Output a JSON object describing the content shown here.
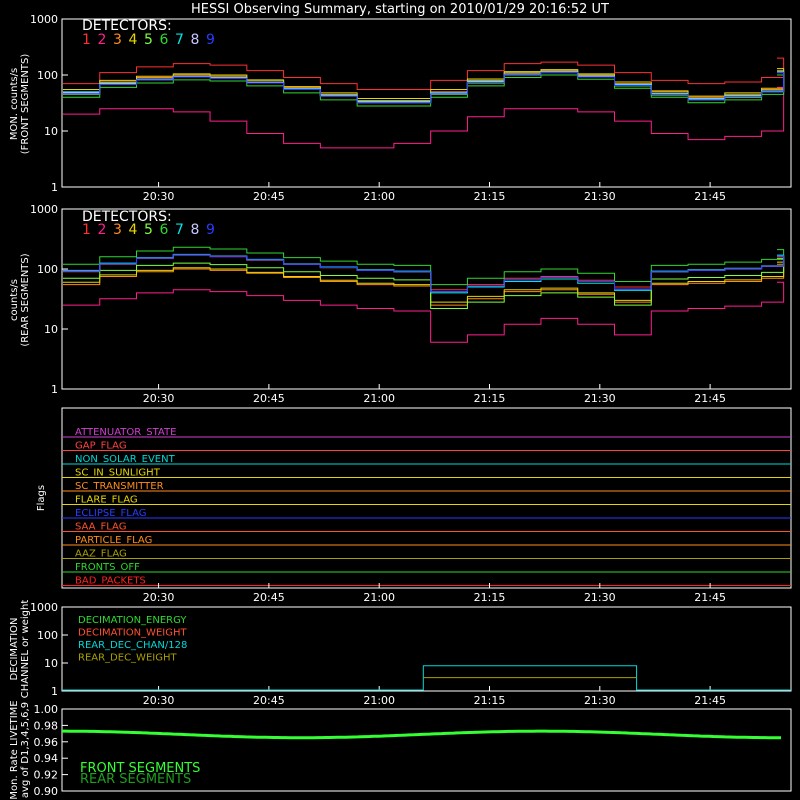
{
  "title": "HESSI Observing Summary, starting on 2010/01/29 20:16:52 UT",
  "colors": {
    "d1": "#ff3030",
    "d2": "#ff1f8f",
    "d3": "#ff8c1a",
    "d4": "#e6d600",
    "d5": "#7fff3f",
    "d6": "#2fd82f",
    "d7": "#00e6e6",
    "d8": "#c8c8ff",
    "d9": "#2a3cff",
    "axis": "#ffffff"
  },
  "x_ticks": [
    "20:30",
    "20:45",
    "21:00",
    "21:15",
    "21:30",
    "21:45"
  ],
  "chart_data": [
    {
      "type": "line",
      "ylabel": "MON. counts/s",
      "ylabel2": "(FRONT SEGMENTS)",
      "yscale": "log",
      "ylim": [
        1,
        1000
      ],
      "y_ticks": [
        "1",
        "10",
        "100",
        "1000"
      ],
      "legend_title": "DETECTORS:",
      "legend_items": [
        "1",
        "2",
        "3",
        "4",
        "5",
        "6",
        "7",
        "8",
        "9"
      ],
      "x": [
        "20:17",
        "20:22",
        "20:27",
        "20:32",
        "20:37",
        "20:42",
        "20:47",
        "20:52",
        "20:57",
        "21:02",
        "21:07",
        "21:12",
        "21:17",
        "21:22",
        "21:27",
        "21:32",
        "21:37",
        "21:42",
        "21:47",
        "21:52",
        "21:55"
      ],
      "series": [
        {
          "name": "1",
          "values": [
            70,
            110,
            140,
            160,
            150,
            120,
            90,
            70,
            55,
            55,
            80,
            120,
            160,
            170,
            150,
            110,
            80,
            70,
            75,
            90,
            200
          ]
        },
        {
          "name": "2",
          "values": [
            20,
            25,
            25,
            22,
            15,
            9,
            6,
            5,
            5,
            6,
            10,
            18,
            25,
            25,
            22,
            15,
            9,
            7,
            8,
            10,
            60
          ]
        },
        {
          "name": "3",
          "values": [
            50,
            75,
            90,
            100,
            95,
            80,
            60,
            45,
            35,
            35,
            50,
            80,
            110,
            120,
            100,
            70,
            50,
            40,
            45,
            55,
            120
          ]
        },
        {
          "name": "4",
          "values": [
            55,
            80,
            95,
            105,
            100,
            82,
            62,
            48,
            38,
            38,
            55,
            85,
            115,
            125,
            105,
            75,
            52,
            42,
            48,
            58,
            130
          ]
        },
        {
          "name": "5",
          "values": [
            45,
            68,
            82,
            92,
            88,
            72,
            55,
            42,
            32,
            32,
            45,
            72,
            100,
            110,
            92,
            64,
            44,
            36,
            40,
            50,
            110
          ]
        },
        {
          "name": "6",
          "values": [
            40,
            60,
            72,
            82,
            78,
            64,
            48,
            36,
            28,
            28,
            40,
            64,
            90,
            100,
            84,
            58,
            40,
            32,
            36,
            45,
            100
          ]
        },
        {
          "name": "7",
          "values": [
            50,
            72,
            85,
            95,
            90,
            75,
            57,
            44,
            34,
            34,
            48,
            78,
            105,
            115,
            96,
            68,
            47,
            38,
            43,
            52,
            115
          ]
        },
        {
          "name": "8",
          "values": [
            48,
            70,
            84,
            94,
            89,
            74,
            56,
            43,
            33,
            33,
            47,
            76,
            103,
            113,
            94,
            66,
            46,
            37,
            42,
            51,
            112
          ]
        },
        {
          "name": "9",
          "values": [
            46,
            68,
            82,
            92,
            87,
            72,
            55,
            42,
            32,
            32,
            46,
            74,
            101,
            111,
            92,
            65,
            45,
            36,
            41,
            50,
            110
          ]
        }
      ]
    },
    {
      "type": "line",
      "ylabel": "counts/s",
      "ylabel2": "(REAR SEGMENTS)",
      "yscale": "log",
      "ylim": [
        1,
        1000
      ],
      "y_ticks": [
        "1",
        "10",
        "100",
        "1000"
      ],
      "legend_title": "DETECTORS:",
      "legend_items": [
        "1",
        "2",
        "3",
        "4",
        "5",
        "6",
        "7",
        "8",
        "9"
      ],
      "x": [
        "20:17",
        "20:22",
        "20:27",
        "20:32",
        "20:37",
        "20:42",
        "20:47",
        "20:52",
        "20:57",
        "21:02",
        "21:07",
        "21:12",
        "21:17",
        "21:22",
        "21:27",
        "21:32",
        "21:37",
        "21:42",
        "21:47",
        "21:52",
        "21:55"
      ],
      "series": [
        {
          "name": "1",
          "values": [
            90,
            120,
            150,
            170,
            160,
            140,
            120,
            105,
            95,
            90,
            45,
            55,
            70,
            75,
            65,
            50,
            90,
            95,
            100,
            110,
            160
          ]
        },
        {
          "name": "2",
          "values": [
            25,
            32,
            40,
            45,
            42,
            36,
            30,
            25,
            22,
            20,
            6,
            8,
            12,
            15,
            12,
            8,
            20,
            22,
            24,
            28,
            60
          ]
        },
        {
          "name": "3",
          "values": [
            55,
            75,
            90,
            100,
            95,
            85,
            72,
            62,
            55,
            52,
            25,
            32,
            42,
            45,
            38,
            28,
            55,
            58,
            62,
            70,
            120
          ]
        },
        {
          "name": "4",
          "values": [
            60,
            80,
            95,
            105,
            100,
            88,
            75,
            65,
            58,
            55,
            28,
            35,
            45,
            48,
            40,
            30,
            58,
            62,
            66,
            75,
            130
          ]
        },
        {
          "name": "5",
          "values": [
            70,
            95,
            115,
            125,
            118,
            105,
            90,
            78,
            70,
            66,
            22,
            28,
            36,
            40,
            34,
            25,
            68,
            72,
            78,
            88,
            150
          ]
        },
        {
          "name": "6",
          "values": [
            120,
            160,
            200,
            230,
            215,
            185,
            155,
            135,
            120,
            115,
            55,
            70,
            90,
            100,
            85,
            62,
            115,
            120,
            130,
            145,
            210
          ]
        },
        {
          "name": "7",
          "values": [
            95,
            125,
            155,
            175,
            165,
            145,
            122,
            108,
            97,
            92,
            40,
            50,
            62,
            68,
            58,
            44,
            92,
            97,
            103,
            113,
            170
          ]
        },
        {
          "name": "8",
          "values": [
            92,
            122,
            152,
            172,
            162,
            142,
            120,
            106,
            95,
            90,
            42,
            52,
            66,
            72,
            62,
            46,
            90,
            95,
            101,
            111,
            165
          ]
        },
        {
          "name": "9",
          "values": [
            92,
            122,
            152,
            172,
            162,
            142,
            120,
            106,
            95,
            90,
            42,
            52,
            66,
            72,
            62,
            46,
            90,
            95,
            101,
            111,
            165
          ]
        }
      ]
    }
  ],
  "flags_panel": {
    "ylabel": "Flags",
    "flags": [
      {
        "label": "ATTENUATOR_STATE",
        "color": "#d040d0"
      },
      {
        "label": "GAP_FLAG",
        "color": "#ff4040"
      },
      {
        "label": "NON_SOLAR_EVENT",
        "color": "#00d8d8"
      },
      {
        "label": "SC_IN_SUNLIGHT",
        "color": "#e6d600"
      },
      {
        "label": "SC_TRANSMITTER",
        "color": "#ff8c1a"
      },
      {
        "label": "FLARE_FLAG",
        "color": "#e6d600"
      },
      {
        "label": "ECLIPSE_FLAG",
        "color": "#2a3cff"
      },
      {
        "label": "SAA_FLAG",
        "color": "#ff5030"
      },
      {
        "label": "PARTICLE_FLAG",
        "color": "#ff8c1a"
      },
      {
        "label": "AAZ_FLAG",
        "color": "#a8a000"
      },
      {
        "label": "FRONTS_OFF",
        "color": "#2fd82f"
      },
      {
        "label": "BAD_PACKETS",
        "color": "#ff2020"
      }
    ]
  },
  "decimation_panel": {
    "ylabel": "DECIMATION",
    "ylabel2": "CHANNEL or weight",
    "y_ticks": [
      "1",
      "10",
      "100",
      "1000"
    ],
    "legend": [
      {
        "label": "DECIMATION_ENERGY",
        "color": "#2fd82f"
      },
      {
        "label": "DECIMATION_WEIGHT",
        "color": "#ff5030"
      },
      {
        "label": "REAR_DEC_CHAN/128",
        "color": "#00d8d8"
      },
      {
        "label": "REAR_DEC_WEIGHT",
        "color": "#a8a000"
      }
    ]
  },
  "livetime_panel": {
    "ylabel": "Mon. Rate LIVETIME",
    "ylabel2": "avg of D1,3,4,5,6,9",
    "y_ticks": [
      "0.90",
      "0.92",
      "0.94",
      "0.96",
      "0.98",
      "1.00"
    ],
    "legend": [
      {
        "label": "FRONT SEGMENTS",
        "color": "#33ff33"
      },
      {
        "label": "REAR SEGMENTS",
        "color": "#1e9e1e"
      }
    ]
  }
}
